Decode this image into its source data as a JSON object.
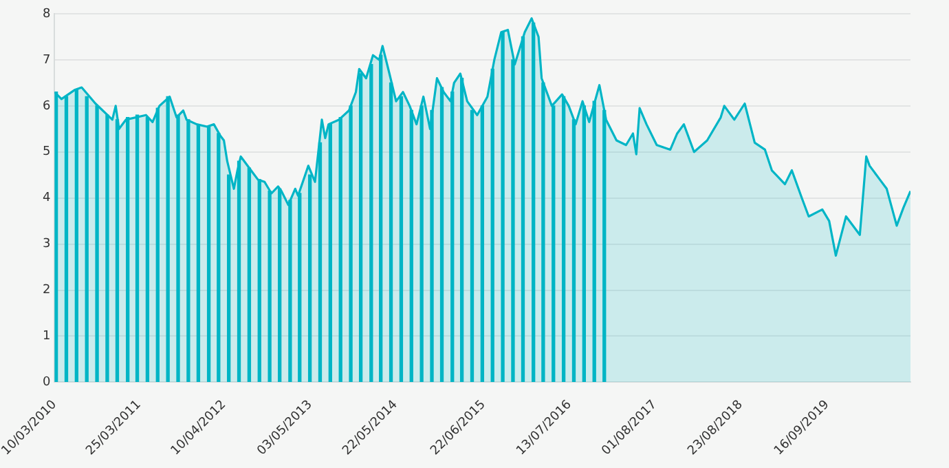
{
  "chart_data": {
    "type": "area",
    "xlim": [
      "2010-03-10",
      "2020-09-25"
    ],
    "xticks": [
      {
        "value": "2010-03-10",
        "label": "10/03/2010"
      },
      {
        "value": "2011-03-25",
        "label": "25/03/2011"
      },
      {
        "value": "2012-04-10",
        "label": "10/04/2012"
      },
      {
        "value": "2013-05-03",
        "label": "03/05/2013"
      },
      {
        "value": "2014-05-22",
        "label": "22/05/2014"
      },
      {
        "value": "2015-06-22",
        "label": "22/06/2015"
      },
      {
        "value": "2016-07-13",
        "label": "13/07/2016"
      },
      {
        "value": "2017-08-01",
        "label": "01/08/2017"
      },
      {
        "value": "2018-08-23",
        "label": "23/08/2018"
      },
      {
        "value": "2019-09-16",
        "label": "16/09/2019"
      }
    ],
    "ylim": [
      0,
      8
    ],
    "yticks": [
      0,
      1,
      2,
      3,
      4,
      5,
      6,
      7,
      8
    ],
    "grid": "y",
    "marker": "none",
    "series": [
      {
        "color": "#00b5c6",
        "x": [
          "2010-03-10",
          "2010-04-10",
          "2010-06-10",
          "2010-07-10",
          "2010-09-10",
          "2010-11-25",
          "2010-12-10",
          "2010-12-25",
          "2011-01-25",
          "2011-04-25",
          "2011-05-25",
          "2011-06-25",
          "2011-08-10",
          "2011-09-10",
          "2011-10-10",
          "2011-10-25",
          "2011-12-10",
          "2012-01-25",
          "2012-02-25",
          "2012-03-25",
          "2012-04-10",
          "2012-04-25",
          "2012-05-25",
          "2012-06-10",
          "2012-06-25",
          "2012-08-10",
          "2012-09-10",
          "2012-10-10",
          "2012-11-10",
          "2012-12-10",
          "2012-12-25",
          "2013-01-25",
          "2013-02-25",
          "2013-03-10",
          "2013-04-25",
          "2013-05-25",
          "2013-06-25",
          "2013-07-10",
          "2013-07-25",
          "2013-09-10",
          "2013-10-25",
          "2013-11-25",
          "2013-12-10",
          "2014-01-10",
          "2014-02-10",
          "2014-03-10",
          "2014-03-25",
          "2014-04-25",
          "2014-05-25",
          "2014-06-25",
          "2014-07-25",
          "2014-08-25",
          "2014-09-25",
          "2014-10-25",
          "2014-11-25",
          "2014-12-25",
          "2015-01-25",
          "2015-02-10",
          "2015-03-10",
          "2015-04-10",
          "2015-05-25",
          "2015-07-10",
          "2015-08-10",
          "2015-09-10",
          "2015-10-10",
          "2015-11-10",
          "2015-12-25",
          "2016-01-25",
          "2016-02-25",
          "2016-03-10",
          "2016-04-25",
          "2016-06-10",
          "2016-07-10",
          "2016-08-10",
          "2016-09-10",
          "2016-10-10",
          "2016-11-25",
          "2016-12-25",
          "2017-02-10",
          "2017-03-25",
          "2017-04-25",
          "2017-05-10",
          "2017-05-25",
          "2017-06-25",
          "2017-08-10",
          "2017-10-10",
          "2017-11-10",
          "2017-12-10",
          "2018-01-25",
          "2018-03-25",
          "2018-05-25",
          "2018-06-10",
          "2018-07-25",
          "2018-09-10",
          "2018-10-25",
          "2018-12-10",
          "2019-01-10",
          "2019-03-10",
          "2019-04-10",
          "2019-05-25",
          "2019-06-25",
          "2019-08-25",
          "2019-09-25",
          "2019-10-25",
          "2019-12-10",
          "2020-02-10",
          "2020-03-10",
          "2020-03-25",
          "2020-05-10",
          "2020-06-10",
          "2020-07-25",
          "2020-08-25",
          "2020-09-25"
        ],
        "values": [
          6.3,
          6.15,
          6.35,
          6.4,
          6.05,
          5.7,
          6.0,
          5.5,
          5.7,
          5.8,
          5.65,
          6.0,
          6.2,
          5.75,
          5.9,
          5.7,
          5.6,
          5.55,
          5.6,
          5.35,
          5.25,
          4.8,
          4.2,
          4.6,
          4.9,
          4.6,
          4.4,
          4.35,
          4.1,
          4.25,
          4.15,
          3.85,
          4.2,
          4.05,
          4.7,
          4.35,
          5.7,
          5.3,
          5.6,
          5.7,
          5.9,
          6.3,
          6.8,
          6.6,
          7.1,
          7.0,
          7.3,
          6.7,
          6.1,
          6.3,
          6.0,
          5.6,
          6.2,
          5.5,
          6.6,
          6.3,
          6.1,
          6.5,
          6.7,
          6.1,
          5.8,
          6.2,
          7.0,
          7.6,
          7.65,
          6.9,
          7.6,
          7.9,
          7.5,
          6.6,
          6.0,
          6.25,
          6.0,
          5.6,
          6.1,
          5.65,
          6.45,
          5.7,
          5.25,
          5.15,
          5.4,
          4.95,
          5.95,
          5.6,
          5.15,
          5.05,
          5.4,
          5.6,
          5.0,
          5.25,
          5.75,
          6.0,
          5.7,
          6.05,
          5.2,
          5.05,
          4.6,
          4.3,
          4.6,
          4.0,
          3.6,
          3.75,
          3.5,
          2.75,
          3.6,
          3.2,
          4.9,
          4.7,
          4.4,
          4.2,
          3.4,
          3.8,
          4.15
        ]
      },
      {
        "type": "bar",
        "color": "#00b5c6",
        "x": [
          "2010-03-17",
          "2010-05-02",
          "2010-06-17",
          "2010-08-02",
          "2010-09-17",
          "2010-11-02",
          "2010-12-17",
          "2011-02-02",
          "2011-03-17",
          "2011-05-02",
          "2011-06-17",
          "2011-08-02",
          "2011-09-17",
          "2011-11-02",
          "2011-12-17",
          "2012-02-02",
          "2012-03-17",
          "2012-05-02",
          "2012-06-17",
          "2012-08-02",
          "2012-09-17",
          "2012-11-02",
          "2012-12-17",
          "2013-02-02",
          "2013-03-17",
          "2013-05-02",
          "2013-06-17",
          "2013-08-02",
          "2013-09-17",
          "2013-11-02",
          "2013-12-17",
          "2014-02-02",
          "2014-03-17",
          "2014-05-02",
          "2014-06-17",
          "2014-08-02",
          "2014-09-17",
          "2014-11-02",
          "2014-12-17",
          "2015-02-02",
          "2015-03-17",
          "2015-05-02",
          "2015-06-17",
          "2015-08-02",
          "2015-09-17",
          "2015-11-02",
          "2015-12-17",
          "2016-02-02",
          "2016-03-17",
          "2016-05-02",
          "2016-06-17",
          "2016-08-02",
          "2016-09-17",
          "2016-11-02",
          "2016-12-17"
        ],
        "values": [
          6.3,
          6.2,
          6.35,
          6.2,
          6.0,
          5.8,
          5.7,
          5.75,
          5.8,
          5.75,
          5.95,
          6.2,
          5.8,
          5.7,
          5.6,
          5.55,
          5.4,
          4.5,
          4.8,
          4.65,
          4.4,
          4.15,
          4.2,
          3.95,
          4.1,
          4.5,
          5.2,
          5.6,
          5.75,
          6.0,
          6.7,
          6.9,
          7.1,
          6.5,
          6.2,
          5.9,
          6.0,
          5.9,
          6.4,
          6.3,
          6.6,
          5.9,
          6.0,
          6.8,
          7.6,
          7.0,
          7.5,
          7.8,
          6.5,
          6.0,
          6.2,
          5.7,
          6.0,
          6.1,
          5.9
        ]
      }
    ]
  }
}
